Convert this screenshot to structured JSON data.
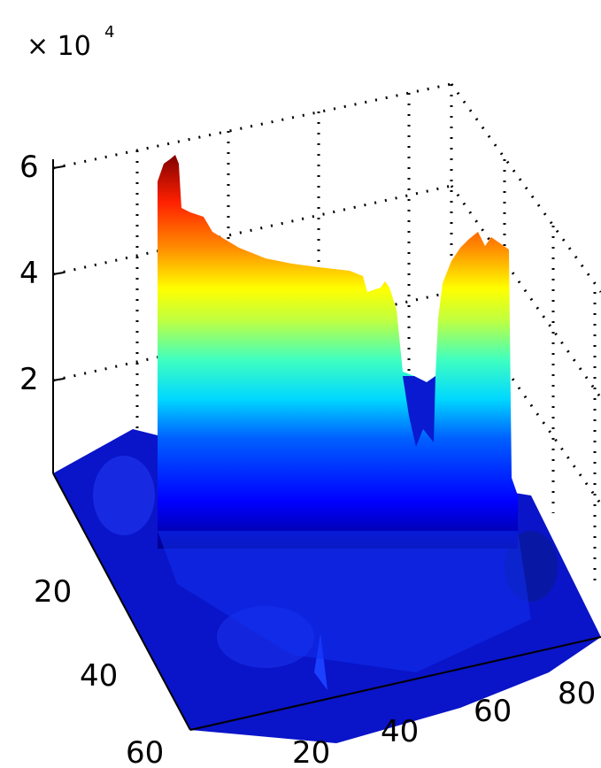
{
  "chart_data": {
    "type": "surface",
    "multiplier": {
      "base": "× 10",
      "exponent": "4"
    },
    "z_ticks": [
      "2",
      "4",
      "6"
    ],
    "y_ticks": [
      "20",
      "40",
      "60"
    ],
    "x_ticks": [
      "20",
      "40",
      "60",
      "80"
    ],
    "zlim": [
      0,
      60000
    ],
    "xlim": [
      0,
      85
    ],
    "ylim": [
      0,
      60
    ],
    "colormap": "jet",
    "grid": true,
    "surface": {
      "description_values": "U-shaped wall of high values (peak ~6 × 10^4) along the back edges, with a gap near x≈40; floor near 0",
      "peak_z": 58000,
      "ridge_left_max": 58000,
      "ridge_right_max": 42000,
      "floor_z": 2000
    }
  }
}
